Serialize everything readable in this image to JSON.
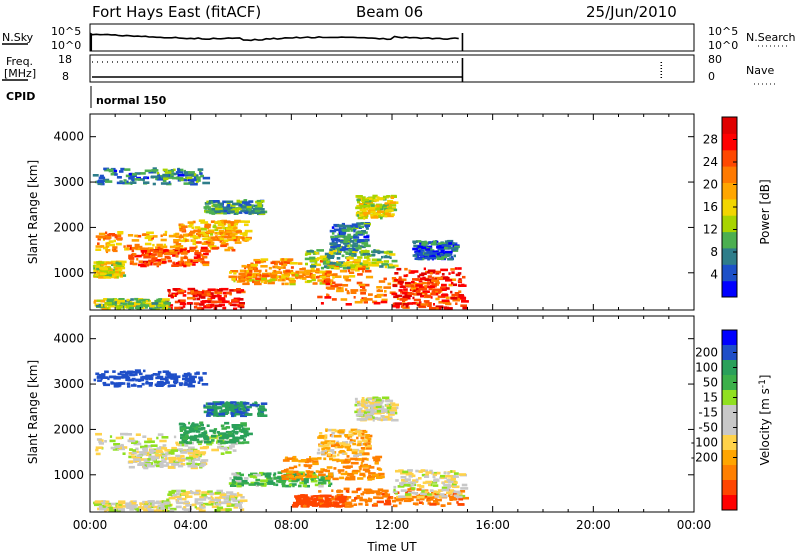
{
  "header": {
    "station": "Fort Hays East (fitACF)",
    "beam": "Beam 06",
    "date": "25/Jun/2010"
  },
  "strip": {
    "nsky_label": "N.Sky",
    "nsky_ticks": [
      "10^5",
      "10^0"
    ],
    "nsearch_label": "N.Search",
    "nsearch_ticks": [
      "10^5",
      "10^0"
    ],
    "freq_label_1": "Freq.",
    "freq_label_2": "[MHz]",
    "freq_ticks": [
      "18",
      "8"
    ],
    "nave_label": "Nave",
    "nave_ticks": [
      "80",
      "0"
    ],
    "cpid_label": "CPID",
    "cpid_value": "normal 150",
    "data_end_hour": 14.8,
    "late_marker_hour": 22.7
  },
  "colors": {
    "power_scale": [
      "#0000ff",
      "#1c50c8",
      "#2e7d8a",
      "#4caf50",
      "#a8d400",
      "#f2d600",
      "#ffa600",
      "#ff7a00",
      "#ff4800",
      "#ff0000",
      "#e00000"
    ],
    "velocity_scale": [
      "#ff0000",
      "#ff4500",
      "#ff7f00",
      "#ffa500",
      "#ffd24a",
      "#c8c8c8",
      "#c8c8c8",
      "#90e020",
      "#3cb04a",
      "#2aa05a",
      "#1f4fc8",
      "#0000ff"
    ],
    "ground_scatter": "#c8c8c8"
  },
  "chart_data": [
    {
      "type": "heatmap",
      "name_label": "Power [dB]",
      "ylabel": "Slant Range [km]",
      "xlabel": "",
      "ylim": [
        180,
        4500
      ],
      "xlim": [
        0,
        24
      ],
      "yticks": [
        "1000",
        "2000",
        "3000",
        "4000"
      ],
      "colorbar_ticks": [
        "4",
        "8",
        "12",
        "16",
        "20",
        "24",
        "28"
      ],
      "colorbar_range": [
        0,
        32
      ],
      "bands": [
        {
          "t0": 0.1,
          "t1": 4.5,
          "r0": 2950,
          "r1": 3300,
          "level": 6
        },
        {
          "t0": 0.2,
          "t1": 5.8,
          "r0": 1450,
          "r1": 1900,
          "level": 20
        },
        {
          "t0": 1.5,
          "t1": 4.5,
          "r0": 1150,
          "r1": 1550,
          "level": 24
        },
        {
          "t0": 0.1,
          "t1": 1.2,
          "r0": 900,
          "r1": 1250,
          "level": 14
        },
        {
          "t0": 3.5,
          "t1": 6.2,
          "r0": 1700,
          "r1": 2150,
          "level": 18
        },
        {
          "t0": 4.5,
          "t1": 6.8,
          "r0": 2300,
          "r1": 2600,
          "level": 8
        },
        {
          "t0": 3.0,
          "t1": 6.0,
          "r0": 200,
          "r1": 650,
          "level": 26
        },
        {
          "t0": 5.5,
          "t1": 9.5,
          "r0": 750,
          "r1": 1050,
          "level": 18
        },
        {
          "t0": 6.0,
          "t1": 11.0,
          "r0": 900,
          "r1": 1300,
          "level": 20
        },
        {
          "t0": 8.5,
          "t1": 12.0,
          "r0": 1100,
          "r1": 1500,
          "level": 10
        },
        {
          "t0": 9.5,
          "t1": 11.0,
          "r0": 1500,
          "r1": 2100,
          "level": 6
        },
        {
          "t0": 10.5,
          "t1": 12.0,
          "r0": 2200,
          "r1": 2700,
          "level": 14
        },
        {
          "t0": 9.0,
          "t1": 14.8,
          "r0": 300,
          "r1": 900,
          "level": 22
        },
        {
          "t0": 12.0,
          "t1": 14.8,
          "r0": 200,
          "r1": 1100,
          "level": 26
        },
        {
          "t0": 0.1,
          "t1": 3.0,
          "r0": 200,
          "r1": 420,
          "level": 12
        },
        {
          "t0": 12.8,
          "t1": 14.5,
          "r0": 1300,
          "r1": 1700,
          "level": 4
        }
      ]
    },
    {
      "type": "heatmap",
      "name_label": "Velocity [m s^-1]",
      "ylabel": "Slant Range [km]",
      "xlabel": "Time UT",
      "ylim": [
        180,
        4500
      ],
      "xlim": [
        0,
        24
      ],
      "xticks": [
        "00:00",
        "04:00",
        "08:00",
        "12:00",
        "16:00",
        "20:00",
        "00:00"
      ],
      "yticks": [
        "1000",
        "2000",
        "3000",
        "4000"
      ],
      "colorbar_ticks": [
        "-200",
        "-100",
        "-50",
        "-15",
        "15",
        "50",
        "100",
        "200"
      ],
      "bands": [
        {
          "t0": 0.1,
          "t1": 4.5,
          "r0": 2950,
          "r1": 3300,
          "v": 150
        },
        {
          "t0": 0.2,
          "t1": 5.8,
          "r0": 1450,
          "r1": 1900,
          "v": 0
        },
        {
          "t0": 1.5,
          "t1": 4.5,
          "r0": 1150,
          "r1": 1550,
          "v": 0
        },
        {
          "t0": 3.5,
          "t1": 6.2,
          "r0": 1700,
          "r1": 2150,
          "v": 60
        },
        {
          "t0": 4.5,
          "t1": 6.8,
          "r0": 2300,
          "r1": 2600,
          "v": 90
        },
        {
          "t0": 3.0,
          "t1": 6.0,
          "r0": 200,
          "r1": 650,
          "v": 0
        },
        {
          "t0": 5.5,
          "t1": 9.5,
          "r0": 750,
          "r1": 1050,
          "v": 40
        },
        {
          "t0": 7.5,
          "t1": 11.5,
          "r0": 900,
          "r1": 1400,
          "v": -60
        },
        {
          "t0": 9.0,
          "t1": 11.0,
          "r0": 1400,
          "r1": 2000,
          "v": -30
        },
        {
          "t0": 10.5,
          "t1": 12.0,
          "r0": 2200,
          "r1": 2700,
          "v": 0
        },
        {
          "t0": 9.0,
          "t1": 14.8,
          "r0": 300,
          "r1": 700,
          "v": -80
        },
        {
          "t0": 12.0,
          "t1": 14.8,
          "r0": 500,
          "r1": 1100,
          "v": 0
        },
        {
          "t0": 0.1,
          "t1": 3.0,
          "r0": 200,
          "r1": 420,
          "v": 0
        },
        {
          "t0": 8.0,
          "t1": 10.0,
          "r0": 300,
          "r1": 550,
          "v": -120
        }
      ]
    }
  ]
}
